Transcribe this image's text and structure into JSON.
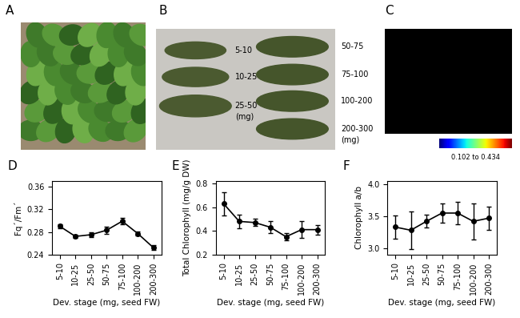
{
  "panel_labels": [
    "A",
    "B",
    "C"
  ],
  "pod_stages_left": [
    "5-10",
    "10-25",
    "25-50"
  ],
  "pod_stages_right": [
    "50-75",
    "75-100",
    "100-200",
    "200-300"
  ],
  "pod_unit": "(mg)",
  "colorbar_label": "0.102 to 0.434",
  "chart_data": [
    {
      "panel": "D",
      "type": "line",
      "color": "#000000",
      "marker": "o",
      "categories": [
        "5-10",
        "10-25",
        "25-50",
        "50-75",
        "75-100",
        "100-200",
        "200-300"
      ],
      "values": [
        0.29,
        0.272,
        0.275,
        0.283,
        0.299,
        0.277,
        0.252
      ],
      "errors": [
        0.004,
        0.003,
        0.004,
        0.006,
        0.006,
        0.004,
        0.004
      ],
      "x_label": "Dev. stage (mg, seed FW)",
      "y_label": "Fq´/Fm´",
      "ylim": [
        0.24,
        0.37
      ],
      "yticks": [
        0.24,
        0.28,
        0.32,
        0.36
      ]
    },
    {
      "panel": "E",
      "type": "line",
      "color": "#000000",
      "marker": "o",
      "categories": [
        "5-10",
        "10-25",
        "25-50",
        "50-75",
        "75-100",
        "100-200",
        "200-300"
      ],
      "values": [
        0.63,
        0.48,
        0.47,
        0.43,
        0.35,
        0.41,
        0.41
      ],
      "errors": [
        0.1,
        0.06,
        0.03,
        0.05,
        0.03,
        0.07,
        0.04
      ],
      "x_label": "Dev. stage (mg, seed FW)",
      "y_label": "Total Chlorophyll (mg/g DW)",
      "ylim": [
        0.2,
        0.82
      ],
      "yticks": [
        0.2,
        0.4,
        0.6,
        0.8
      ]
    },
    {
      "panel": "F",
      "type": "line",
      "color": "#000000",
      "marker": "o",
      "categories": [
        "5-10",
        "10-25",
        "25-50",
        "50-75",
        "75-100",
        "100-200",
        "200-300"
      ],
      "values": [
        3.33,
        3.28,
        3.42,
        3.55,
        3.55,
        3.42,
        3.47
      ],
      "errors": [
        0.18,
        0.3,
        0.1,
        0.15,
        0.18,
        0.28,
        0.18
      ],
      "x_label": "Dev. stage (mg, seed FW)",
      "y_label": "Chlorophyll a/b",
      "ylim": [
        2.9,
        4.05
      ],
      "yticks": [
        {
          "value": 3.0,
          "label": "3.0"
        },
        {
          "value": 3.5,
          "label": "3.5"
        },
        {
          "value": 4.0,
          "label": "4.0"
        }
      ]
    }
  ]
}
